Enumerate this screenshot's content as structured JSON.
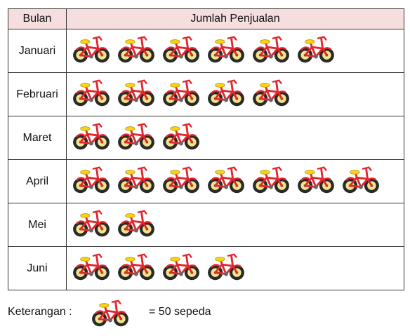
{
  "chart_data": {
    "type": "pictograph",
    "columns": [
      "Bulan",
      "Jumlah Penjualan"
    ],
    "rows": [
      {
        "label": "Januari",
        "icons": 6
      },
      {
        "label": "Februari",
        "icons": 5
      },
      {
        "label": "Maret",
        "icons": 3
      },
      {
        "label": "April",
        "icons": 7
      },
      {
        "label": "Mei",
        "icons": 2
      },
      {
        "label": "Juni",
        "icons": 4
      }
    ],
    "unit_per_icon": 50,
    "icon": "bicycle-icon",
    "legend": {
      "label": "Keterangan :",
      "value_text": "= 50 sepeda"
    }
  },
  "colors": {
    "header_bg": "#f6dede",
    "bike_frame": "#e3262d",
    "bike_seat": "#f7d417",
    "tire": "#222222"
  }
}
